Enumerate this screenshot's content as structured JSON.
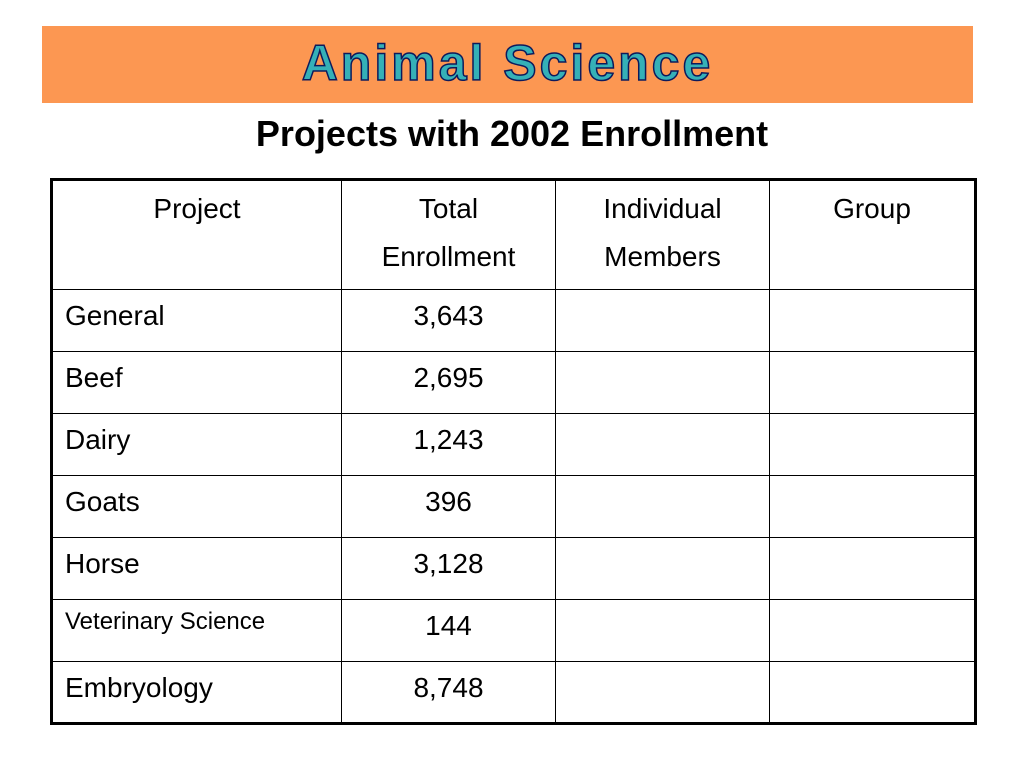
{
  "banner": {
    "title": "Animal Science",
    "background_color": "#fc9752",
    "title_color": "#35b0b7"
  },
  "subtitle": "Projects with 2002 Enrollment",
  "table": {
    "headers": {
      "project": "Project",
      "total_line1": "Total",
      "total_line2": "Enrollment",
      "individual_line1": "Individual",
      "individual_line2": "Members",
      "group": "Group"
    },
    "rows": [
      {
        "project": "General",
        "total": "3,643",
        "individual": "",
        "group": ""
      },
      {
        "project": "Beef",
        "total": "2,695",
        "individual": "",
        "group": ""
      },
      {
        "project": "Dairy",
        "total": "1,243",
        "individual": "",
        "group": ""
      },
      {
        "project": "Goats",
        "total": "396",
        "individual": "",
        "group": ""
      },
      {
        "project": "Horse",
        "total": "3,128",
        "individual": "",
        "group": ""
      },
      {
        "project": "Veterinary Science",
        "total": "144",
        "individual": "",
        "group": ""
      },
      {
        "project": "Embryology",
        "total": "8,748",
        "individual": "",
        "group": ""
      }
    ]
  }
}
